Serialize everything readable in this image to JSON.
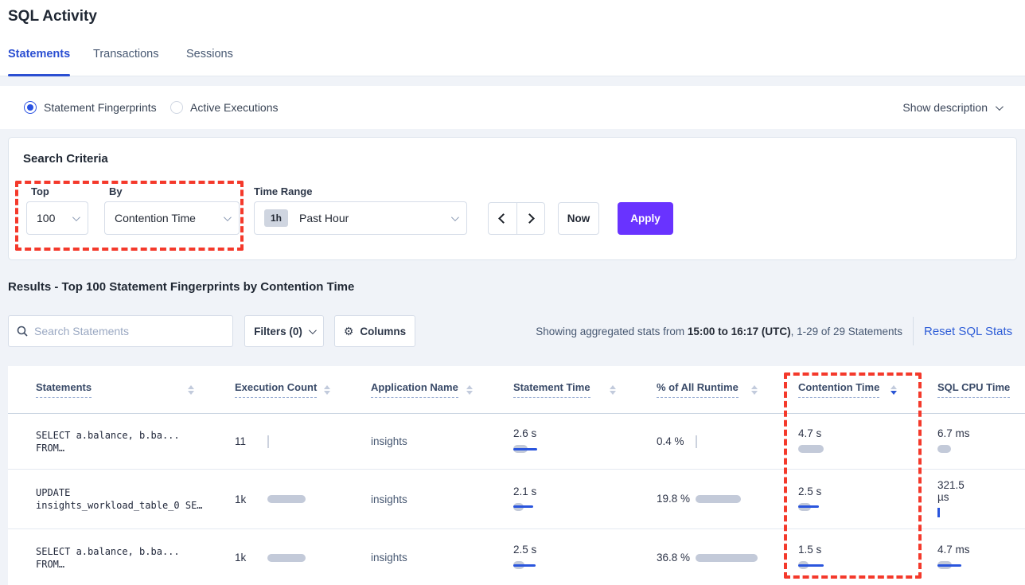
{
  "page": {
    "title": "SQL Activity"
  },
  "tabs": [
    {
      "label": "Statements",
      "active": true
    },
    {
      "label": "Transactions",
      "active": false
    },
    {
      "label": "Sessions",
      "active": false
    }
  ],
  "view_toggle": {
    "options": [
      {
        "label": "Statement Fingerprints",
        "selected": true
      },
      {
        "label": "Active Executions",
        "selected": false
      }
    ],
    "show_description_label": "Show description"
  },
  "search_criteria": {
    "heading": "Search Criteria",
    "top": {
      "label": "Top",
      "value": "100"
    },
    "by": {
      "label": "By",
      "value": "Contention Time"
    },
    "time_range": {
      "label": "Time Range",
      "badge": "1h",
      "value": "Past Hour"
    },
    "now_label": "Now",
    "apply_label": "Apply"
  },
  "results": {
    "heading": "Results - Top 100 Statement Fingerprints by Contention Time",
    "search_placeholder": "Search Statements",
    "filters_label": "Filters (0)",
    "columns_label": "Columns",
    "stats_prefix": "Showing aggregated stats from ",
    "stats_bold": "15:00 to 16:17 (UTC)",
    "stats_suffix": ", 1-29 of 29 Statements",
    "reset_label": "Reset SQL Stats"
  },
  "table": {
    "columns": [
      "Statements",
      "Execution Count",
      "Application Name",
      "Statement Time",
      "% of All Runtime",
      "Contention Time",
      "SQL CPU Time"
    ],
    "sorted_column": "Contention Time",
    "sort_direction": "desc",
    "rows": [
      {
        "statement_line1": "SELECT a.balance, b.ba...",
        "statement_line2": "FROM…",
        "execution_count": "11",
        "application_name": "insights",
        "statement_time": "2.6 s",
        "pct_runtime": "0.4 %",
        "contention_time": "4.7 s",
        "sql_cpu_time": "6.7 ms",
        "bars": {
          "exec": {
            "tick": "gray"
          },
          "stmt": {
            "gray": 18,
            "blue": 30
          },
          "pct": {
            "tick": "gray"
          },
          "cont": {
            "gray": 32
          },
          "cpu": {
            "gray": 17
          }
        }
      },
      {
        "statement_line1": "UPDATE",
        "statement_line2": "insights_workload_table_0 SE…",
        "execution_count": "1k",
        "application_name": "insights",
        "statement_time": "2.1 s",
        "pct_runtime": "19.8 %",
        "contention_time": "2.5 s",
        "sql_cpu_time": "321.5 µs",
        "bars": {
          "exec": {
            "gray": 48
          },
          "stmt": {
            "gray": 13,
            "blue": 25
          },
          "pct": {
            "gray": 57
          },
          "cont": {
            "gray": 16,
            "blue": 26
          },
          "cpu": {
            "tick": "blue"
          }
        }
      },
      {
        "statement_line1": "SELECT a.balance, b.ba...",
        "statement_line2": "FROM…",
        "execution_count": "1k",
        "application_name": "insights",
        "statement_time": "2.5 s",
        "pct_runtime": "36.8 %",
        "contention_time": "1.5 s",
        "sql_cpu_time": "4.7 ms",
        "bars": {
          "exec": {
            "gray": 48
          },
          "stmt": {
            "gray": 14,
            "blue": 28
          },
          "pct": {
            "gray": 78
          },
          "cont": {
            "gray": 13,
            "blue": 32
          },
          "cpu": {
            "gray": 18,
            "blue": 30
          }
        }
      }
    ]
  },
  "colors": {
    "accent_blue": "#2b4fd2",
    "link_blue": "#2e5dd7",
    "apply_purple": "#6933ff",
    "annotation_red": "#f4392b",
    "bar_gray": "#c3cad9",
    "bar_blue": "#2a55dd"
  }
}
